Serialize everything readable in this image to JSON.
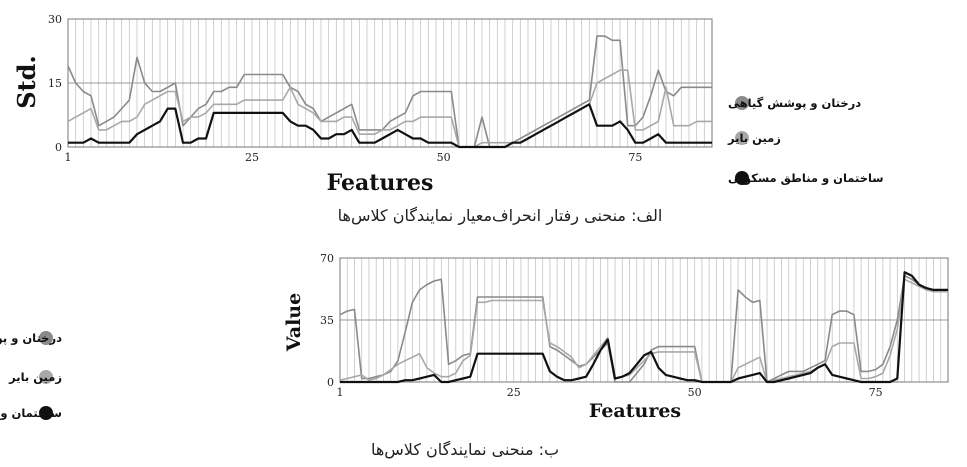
{
  "chart_data": [
    {
      "type": "line",
      "caption": "الف: منحنی رفتار انحراف‌معیار نمایندگان کلاس‌ها",
      "xlabel": "Features",
      "ylabel": "Std.",
      "ylim": [
        0,
        30
      ],
      "xlim": [
        1,
        85
      ],
      "yticks": [
        "0",
        "15",
        "30"
      ],
      "xticks": [
        "1",
        "25",
        "50",
        "75"
      ],
      "grid": true,
      "legend_position": "right",
      "series": [
        {
          "name": "درختان و پوشش گیاهی",
          "color": "#8a8a8a",
          "values": [
            19,
            15,
            13,
            12,
            5,
            6,
            7,
            9,
            11,
            21,
            15,
            13,
            13,
            14,
            15,
            5,
            7,
            9,
            10,
            13,
            13,
            14,
            14,
            17,
            17,
            17,
            17,
            17,
            17,
            14,
            13,
            10,
            9,
            6,
            7,
            8,
            9,
            10,
            4,
            4,
            4,
            4,
            6,
            7,
            8,
            12,
            13,
            13,
            13,
            13,
            13,
            0,
            0,
            0,
            7,
            0,
            0,
            0,
            1,
            2,
            3,
            4,
            5,
            6,
            7,
            8,
            9,
            10,
            11,
            26,
            26,
            25,
            25,
            5,
            5,
            7,
            12,
            18,
            13,
            12,
            14,
            14,
            14,
            14,
            14
          ]
        },
        {
          "name": "زمین بایر",
          "color": "#a8a8a8",
          "values": [
            6,
            7,
            8,
            9,
            4,
            4,
            5,
            6,
            6,
            7,
            10,
            11,
            12,
            13,
            13,
            6,
            7,
            7,
            8,
            10,
            10,
            10,
            10,
            11,
            11,
            11,
            11,
            11,
            11,
            14,
            10,
            9,
            8,
            6,
            6,
            6,
            7,
            7,
            3,
            3,
            3,
            4,
            4,
            5,
            6,
            6,
            7,
            7,
            7,
            7,
            7,
            0,
            0,
            0,
            1,
            1,
            1,
            1,
            1,
            1,
            2,
            3,
            4,
            5,
            6,
            7,
            8,
            9,
            10,
            15,
            16,
            17,
            18,
            18,
            4,
            4,
            5,
            6,
            14,
            5,
            5,
            5,
            6,
            6,
            6
          ]
        },
        {
          "name": "ساختمان و مناطق مسکونی",
          "color": "#111111",
          "values": [
            1,
            1,
            1,
            2,
            1,
            1,
            1,
            1,
            1,
            3,
            4,
            5,
            6,
            9,
            9,
            1,
            1,
            2,
            2,
            8,
            8,
            8,
            8,
            8,
            8,
            8,
            8,
            8,
            8,
            6,
            5,
            5,
            4,
            2,
            2,
            3,
            3,
            4,
            1,
            1,
            1,
            2,
            3,
            4,
            3,
            2,
            2,
            1,
            1,
            1,
            1,
            0,
            0,
            0,
            0,
            0,
            0,
            0,
            1,
            1,
            2,
            3,
            4,
            5,
            6,
            7,
            8,
            9,
            10,
            5,
            5,
            5,
            6,
            4,
            1,
            1,
            2,
            3,
            1,
            1,
            1,
            1,
            1,
            1,
            1
          ]
        }
      ]
    },
    {
      "type": "line",
      "caption": "ب: منحنی نمایندگان کلاس‌ها",
      "xlabel": "Features",
      "ylabel": "Value",
      "ylim": [
        0,
        70
      ],
      "xlim": [
        1,
        85
      ],
      "yticks": [
        "0",
        "35",
        "70"
      ],
      "xticks": [
        "1",
        "25",
        "50",
        "75"
      ],
      "grid": true,
      "legend_position": "left",
      "series": [
        {
          "name": "درختان و پوشش گیاهی",
          "color": "#8a8a8a",
          "values": [
            38,
            40,
            41,
            2,
            2,
            3,
            4,
            6,
            12,
            28,
            45,
            52,
            55,
            57,
            58,
            10,
            12,
            15,
            16,
            48,
            48,
            48,
            48,
            48,
            48,
            48,
            48,
            48,
            48,
            20,
            18,
            15,
            12,
            9,
            10,
            14,
            18,
            22,
            0,
            0,
            0,
            5,
            10,
            18,
            20,
            20,
            20,
            20,
            20,
            20,
            0,
            0,
            0,
            0,
            0,
            52,
            48,
            45,
            46,
            0,
            2,
            4,
            6,
            6,
            6,
            8,
            10,
            12,
            38,
            40,
            40,
            38,
            6,
            6,
            7,
            10,
            20,
            35,
            60,
            58,
            55,
            53,
            52,
            52,
            52
          ]
        },
        {
          "name": "زمین بایر",
          "color": "#a8a8a8",
          "values": [
            1,
            2,
            3,
            4,
            1,
            2,
            4,
            7,
            10,
            12,
            14,
            16,
            8,
            5,
            3,
            3,
            5,
            12,
            15,
            45,
            45,
            46,
            46,
            46,
            46,
            46,
            46,
            46,
            46,
            22,
            20,
            17,
            14,
            8,
            10,
            15,
            20,
            25,
            2,
            3,
            4,
            8,
            12,
            16,
            17,
            17,
            17,
            17,
            17,
            17,
            0,
            0,
            0,
            0,
            0,
            8,
            10,
            12,
            14,
            0,
            1,
            2,
            3,
            4,
            5,
            6,
            8,
            10,
            20,
            22,
            22,
            22,
            2,
            2,
            3,
            5,
            15,
            30,
            58,
            56,
            54,
            52,
            51,
            51,
            51
          ]
        },
        {
          "name": "ساختمان و مناطق مسکونی",
          "color": "#111111",
          "values": [
            0,
            0,
            0,
            0,
            0,
            0,
            0,
            0,
            0,
            1,
            1,
            2,
            3,
            4,
            0,
            0,
            1,
            2,
            3,
            16,
            16,
            16,
            16,
            16,
            16,
            16,
            16,
            16,
            16,
            6,
            3,
            1,
            1,
            2,
            3,
            10,
            18,
            24,
            2,
            3,
            5,
            10,
            15,
            17,
            8,
            4,
            3,
            2,
            1,
            1,
            0,
            0,
            0,
            0,
            0,
            2,
            3,
            4,
            5,
            0,
            0,
            1,
            2,
            3,
            4,
            5,
            8,
            10,
            4,
            3,
            2,
            1,
            0,
            0,
            0,
            0,
            0,
            2,
            62,
            60,
            55,
            53,
            52,
            52,
            52
          ]
        }
      ]
    }
  ]
}
